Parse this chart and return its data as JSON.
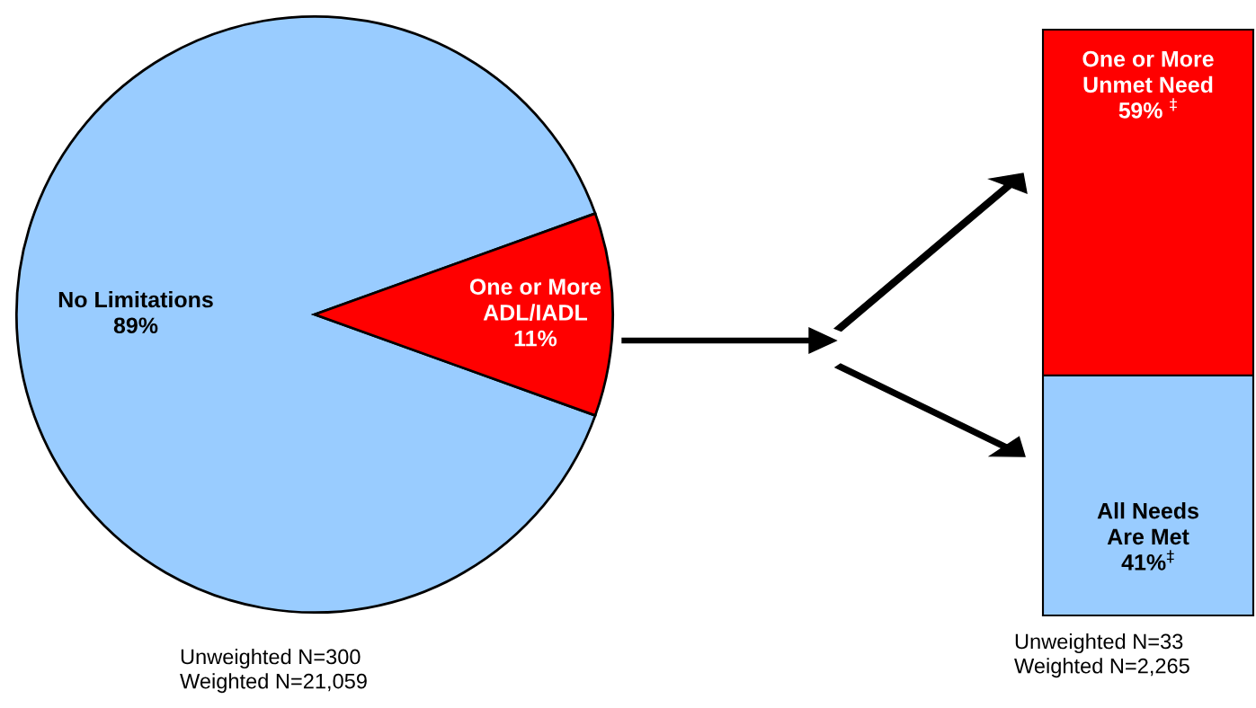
{
  "chart_data": [
    {
      "type": "pie",
      "categories": [
        "No Limitations",
        "One or More ADL/IADL"
      ],
      "values": [
        89,
        11
      ],
      "colors": [
        "#99ccff",
        "#ff0000"
      ],
      "value_labels": [
        "89%",
        "11%"
      ],
      "annotations": [
        "Unweighted N=300",
        "Weighted N=21,059"
      ]
    },
    {
      "type": "bar",
      "stacked": true,
      "categories": [
        null
      ],
      "series": [
        {
          "name": "All Needs Are Met",
          "color": "#99ccff",
          "values": [
            41
          ],
          "value_labels": [
            "41%$^{‡}$"
          ]
        },
        {
          "name": "One or More Unmet Need",
          "color": "#ff0000",
          "values": [
            59
          ],
          "value_labels": [
            "59% $^{‡}$"
          ]
        }
      ],
      "annotations": [
        "Unweighted N=33",
        "Weighted N=2,265"
      ]
    }
  ]
}
